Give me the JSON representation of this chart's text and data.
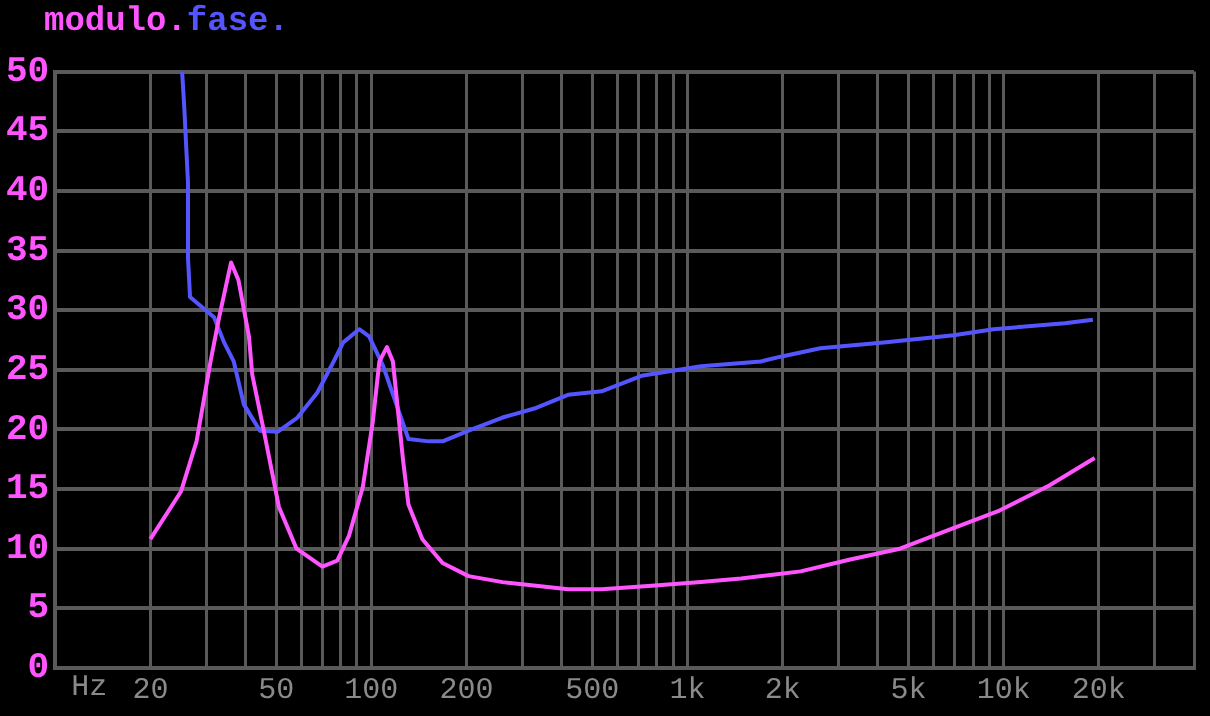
{
  "chart_data": {
    "type": "line",
    "xlabel": "Hz",
    "log": "x",
    "grid": true,
    "legend": "top left",
    "marker": "none",
    "line_style": "solid",
    "xlim": [
      10,
      40000
    ],
    "xticks": [
      {
        "value": 10,
        "label": null
      },
      {
        "value": 20,
        "label": "20"
      },
      {
        "value": 30,
        "label": null
      },
      {
        "value": 40,
        "label": null
      },
      {
        "value": 50,
        "label": "50"
      },
      {
        "value": 60,
        "label": null
      },
      {
        "value": 70,
        "label": null
      },
      {
        "value": 80,
        "label": null
      },
      {
        "value": 90,
        "label": null
      },
      {
        "value": 100,
        "label": "100"
      },
      {
        "value": 200,
        "label": "200"
      },
      {
        "value": 300,
        "label": null
      },
      {
        "value": 400,
        "label": null
      },
      {
        "value": 500,
        "label": "500"
      },
      {
        "value": 600,
        "label": null
      },
      {
        "value": 700,
        "label": null
      },
      {
        "value": 800,
        "label": null
      },
      {
        "value": 900,
        "label": null
      },
      {
        "value": 1000,
        "label": "1k"
      },
      {
        "value": 2000,
        "label": "2k"
      },
      {
        "value": 3000,
        "label": null
      },
      {
        "value": 4000,
        "label": null
      },
      {
        "value": 5000,
        "label": "5k"
      },
      {
        "value": 6000,
        "label": null
      },
      {
        "value": 7000,
        "label": null
      },
      {
        "value": 8000,
        "label": null
      },
      {
        "value": 9000,
        "label": null
      },
      {
        "value": 10000,
        "label": "10k"
      },
      {
        "value": 20000,
        "label": "20k"
      },
      {
        "value": 30000,
        "label": null
      },
      {
        "value": 40000,
        "label": null
      }
    ],
    "ylim": [
      0,
      50
    ],
    "yticks": [
      0,
      5,
      10,
      15,
      20,
      25,
      30,
      35,
      40,
      45,
      50
    ],
    "series": [
      {
        "name": "modulo.",
        "color": "#ff55ff",
        "x": [
          20,
          25,
          28,
          31,
          33,
          36,
          38,
          41,
          42,
          46,
          51,
          58,
          70,
          78,
          85,
          94,
          101,
          106,
          112,
          117,
          126,
          131,
          145,
          168,
          203,
          260,
          332,
          419,
          535,
          770,
          1104,
          1476,
          1834,
          2280,
          3270,
          4700,
          6740,
          9700,
          13940,
          19400
        ],
        "values": [
          10.8,
          14.8,
          19,
          25.7,
          29.4,
          34,
          32.5,
          27.8,
          24.6,
          19.5,
          13.5,
          10,
          8.5,
          9,
          11.1,
          15.2,
          20.6,
          25.7,
          26.9,
          25.7,
          17.4,
          13.7,
          10.8,
          8.8,
          7.7,
          7.2,
          6.9,
          6.6,
          6.6,
          6.9,
          7.2,
          7.5,
          7.8,
          8.1,
          9.1,
          10,
          11.6,
          13.2,
          15.3,
          17.6
        ]
      },
      {
        "name": "fase.",
        "color": "#5555ff",
        "x": [
          25.2,
          25.6,
          26.3,
          26.3,
          26.7,
          29.6,
          31.8,
          34.2,
          36.7,
          39.5,
          44.4,
          50.5,
          58.4,
          67.5,
          76,
          81.5,
          91.5,
          98.4,
          109,
          120,
          131,
          152,
          168,
          203,
          260,
          332,
          419,
          535,
          715,
          1104,
          1706,
          1972,
          2630,
          4250,
          6950,
          9290,
          15600,
          19150
        ],
        "values": [
          50,
          47,
          40.7,
          34.4,
          31.1,
          30.1,
          29.4,
          27.3,
          25.7,
          22.1,
          19.9,
          19.8,
          21,
          23.1,
          25.7,
          27.3,
          28.4,
          27.8,
          25.3,
          22.1,
          19.2,
          19,
          19,
          19.9,
          21,
          21.8,
          22.9,
          23.2,
          24.5,
          25.3,
          25.7,
          26.1,
          26.8,
          27.3,
          27.9,
          28.4,
          28.9,
          29.2
        ]
      }
    ]
  }
}
